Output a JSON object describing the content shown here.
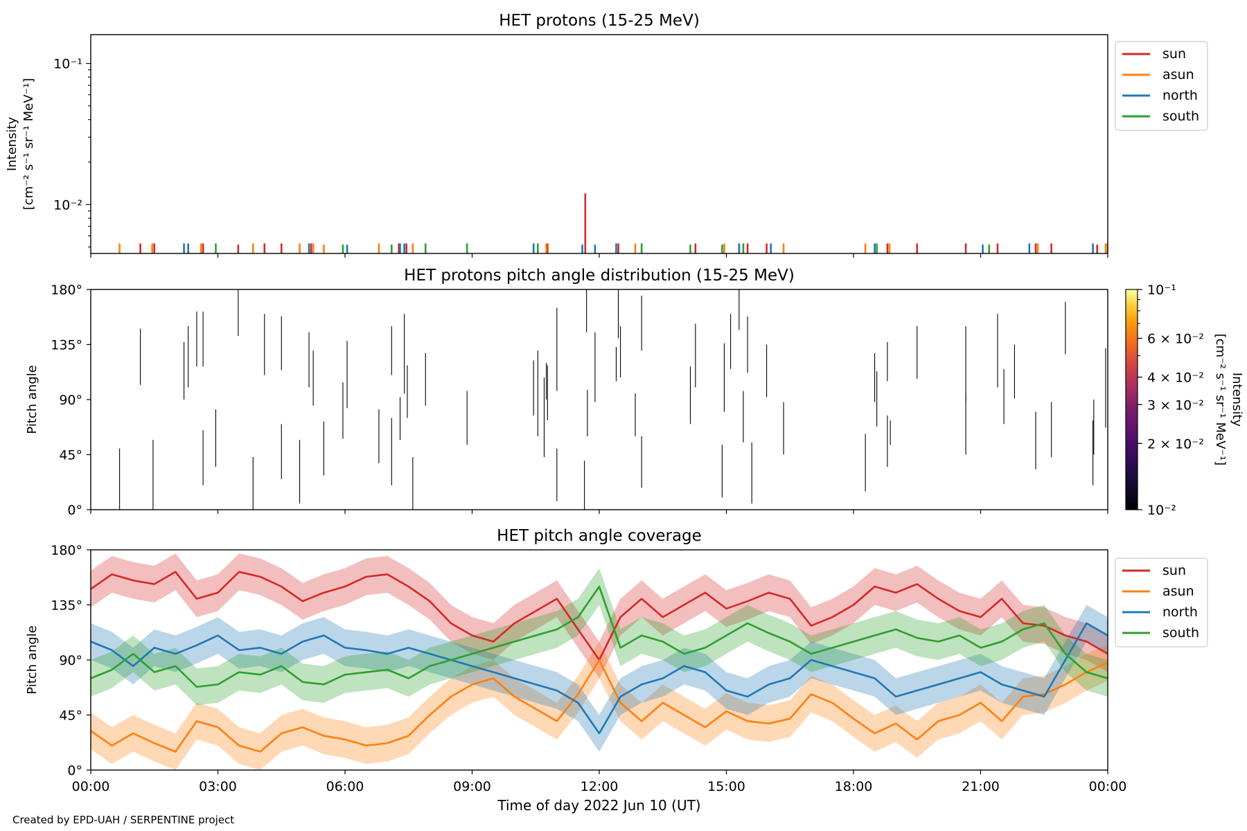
{
  "colors": {
    "sun": "#d62728",
    "asun": "#ff7f0e",
    "north": "#1f77b4",
    "south": "#2ca02c"
  },
  "footer": "Created by EPD-UAH / SERPENTINE project",
  "x_axis": {
    "label": "Time of day 2022 Jun 10 (UT)",
    "ticks": [
      0,
      3,
      6,
      9,
      12,
      15,
      18,
      21,
      24
    ],
    "tick_labels": [
      "00:00",
      "03:00",
      "06:00",
      "09:00",
      "12:00",
      "15:00",
      "18:00",
      "21:00",
      "00:00"
    ],
    "range_hours": [
      0,
      24
    ]
  },
  "chart_data": [
    {
      "type": "line",
      "title": "HET protons (15-25 MeV)",
      "ylabel": "Intensity [cm$^{-2}$ s$^{-1}$ sr$^{-1}$ MeV$^{-1}$]",
      "ylabel_line1": "Intensity",
      "ylabel_line2": "[cm⁻² s⁻¹ sr⁻¹ MeV⁻¹]",
      "yscale": "log",
      "ylim": [
        0.0045,
        0.16
      ],
      "ytick_values": [
        0.01,
        0.1
      ],
      "ytick_labels": [
        "10⁻²",
        "10⁻¹"
      ],
      "legend": {
        "placement": "outside-right-top",
        "entries": [
          "sun",
          "asun",
          "north",
          "south"
        ]
      },
      "series": [
        {
          "name": "sun",
          "spike_times_h": [
            1.17,
            1.5,
            2.65,
            3.48,
            4.1,
            4.5,
            5.2,
            7.27,
            7.45,
            10.78,
            11.67,
            12.45,
            14.27,
            15.3,
            15.5,
            15.95,
            18.8,
            19.5,
            20.65,
            21.4,
            22.3,
            22.67,
            23.75
          ],
          "spike_values": [
            0.0053,
            0.0053,
            0.0053,
            0.0052,
            0.0053,
            0.0053,
            0.0053,
            0.0053,
            0.0053,
            0.0053,
            0.012,
            0.0053,
            0.0053,
            0.0053,
            0.0053,
            0.0053,
            0.0053,
            0.0053,
            0.0053,
            0.0053,
            0.0053,
            0.0053,
            0.0052
          ]
        },
        {
          "name": "asun",
          "spike_times_h": [
            0.68,
            1.45,
            2.6,
            3.83,
            4.93,
            5.25,
            5.5,
            6.8,
            7.6,
            10.75,
            12.85,
            14.95,
            16.35,
            18.28,
            18.85,
            22.35,
            23.95
          ],
          "spike_values": [
            0.0053,
            0.0053,
            0.0053,
            0.0053,
            0.0053,
            0.0053,
            0.0052,
            0.0053,
            0.0053,
            0.0053,
            0.0053,
            0.0053,
            0.0053,
            0.0053,
            0.0053,
            0.0053,
            0.0053
          ]
        },
        {
          "name": "north",
          "spike_times_h": [
            2.2,
            2.3,
            5.15,
            6.05,
            7.3,
            7.4,
            10.45,
            11.6,
            11.9,
            12.4,
            15.3,
            16.05,
            18.5,
            21.05,
            22.15,
            23.65
          ],
          "spike_values": [
            0.0053,
            0.0053,
            0.0053,
            0.0052,
            0.0053,
            0.0053,
            0.0053,
            0.0052,
            0.0052,
            0.0053,
            0.0053,
            0.0053,
            0.0053,
            0.0052,
            0.0053,
            0.0053
          ]
        },
        {
          "name": "south",
          "spike_times_h": [
            2.95,
            5.95,
            7.1,
            7.9,
            8.88,
            10.55,
            13.0,
            14.15,
            14.9,
            15.4,
            18.55,
            21.2,
            24.0
          ],
          "spike_values": [
            0.0053,
            0.0052,
            0.0052,
            0.0053,
            0.0053,
            0.0053,
            0.0053,
            0.0052,
            0.0052,
            0.0053,
            0.0053,
            0.0052,
            0.0053
          ]
        }
      ]
    },
    {
      "type": "heatmap",
      "title": "HET protons pitch angle distribution (15-25 MeV)",
      "ylabel": "Pitch angle",
      "ylim": [
        0,
        180
      ],
      "ytick_values": [
        0,
        45,
        90,
        135,
        180
      ],
      "ytick_labels": [
        "0°",
        "45°",
        "90°",
        "135°",
        "180°"
      ],
      "colorbar": {
        "label": "Intensity [cm$^{-2}$ s$^{-1}$ sr$^{-1}$ MeV$^{-1}$]",
        "label_line1": "Intensity",
        "label_line2": "[cm⁻² s⁻¹ sr⁻¹ MeV⁻¹]",
        "scale": "log",
        "range": [
          0.01,
          0.1
        ],
        "colormap": "inferno",
        "tick_values": [
          0.01,
          0.02,
          0.03,
          0.04,
          0.06,
          0.1
        ],
        "tick_labels": [
          "10⁻²",
          "2 × 10⁻²",
          "3 × 10⁻²",
          "4 × 10⁻²",
          "6 × 10⁻²",
          "10⁻¹"
        ]
      },
      "segments": [
        [
          0.68,
          0,
          50
        ],
        [
          1.17,
          102,
          148
        ],
        [
          1.47,
          0,
          57
        ],
        [
          2.2,
          90,
          137
        ],
        [
          2.3,
          100,
          150
        ],
        [
          2.5,
          117,
          162
        ],
        [
          2.65,
          117,
          162
        ],
        [
          2.65,
          20,
          65
        ],
        [
          2.95,
          35,
          82
        ],
        [
          3.48,
          142,
          180
        ],
        [
          3.83,
          0,
          43
        ],
        [
          4.1,
          110,
          160
        ],
        [
          4.5,
          114,
          158
        ],
        [
          4.5,
          25,
          70
        ],
        [
          4.93,
          5,
          57
        ],
        [
          5.15,
          100,
          145
        ],
        [
          5.25,
          85,
          130
        ],
        [
          5.5,
          28,
          72
        ],
        [
          5.95,
          58,
          104
        ],
        [
          6.05,
          83,
          138
        ],
        [
          6.8,
          38,
          82
        ],
        [
          7.1,
          110,
          150
        ],
        [
          7.1,
          20,
          75
        ],
        [
          7.3,
          57,
          92
        ],
        [
          7.4,
          95,
          160
        ],
        [
          7.47,
          75,
          118
        ],
        [
          7.6,
          0,
          43
        ],
        [
          7.9,
          85,
          128
        ],
        [
          8.88,
          53,
          97
        ],
        [
          10.45,
          77,
          122
        ],
        [
          10.55,
          60,
          130
        ],
        [
          10.7,
          43,
          108
        ],
        [
          10.75,
          90,
          120
        ],
        [
          10.78,
          73,
          118
        ],
        [
          11.0,
          7,
          50
        ],
        [
          11.0,
          97,
          165
        ],
        [
          11.65,
          0,
          40
        ],
        [
          11.7,
          145,
          180
        ],
        [
          11.72,
          60,
          98
        ],
        [
          11.9,
          88,
          145
        ],
        [
          12.4,
          105,
          133
        ],
        [
          12.45,
          140,
          180
        ],
        [
          12.5,
          108,
          150
        ],
        [
          12.85,
          60,
          95
        ],
        [
          13.0,
          18,
          60
        ],
        [
          13.0,
          130,
          175
        ],
        [
          14.15,
          70,
          117
        ],
        [
          14.27,
          100,
          152
        ],
        [
          14.9,
          10,
          53
        ],
        [
          14.95,
          80,
          136
        ],
        [
          15.1,
          115,
          160
        ],
        [
          15.3,
          147,
          180
        ],
        [
          15.4,
          55,
          97
        ],
        [
          15.5,
          112,
          158
        ],
        [
          15.6,
          5,
          55
        ],
        [
          15.95,
          92,
          135
        ],
        [
          16.35,
          45,
          88
        ],
        [
          18.28,
          15,
          62
        ],
        [
          18.5,
          88,
          128
        ],
        [
          18.55,
          68,
          113
        ],
        [
          18.8,
          35,
          77
        ],
        [
          18.8,
          105,
          137
        ],
        [
          18.87,
          53,
          73
        ],
        [
          19.5,
          107,
          150
        ],
        [
          20.65,
          88,
          150
        ],
        [
          20.65,
          45,
          95
        ],
        [
          21.4,
          100,
          160
        ],
        [
          21.55,
          70,
          115
        ],
        [
          21.8,
          91,
          135
        ],
        [
          22.3,
          33,
          80
        ],
        [
          22.67,
          43,
          88
        ],
        [
          23.0,
          127,
          170
        ],
        [
          23.65,
          20,
          73
        ],
        [
          23.67,
          45,
          90
        ],
        [
          23.95,
          67,
          132
        ]
      ]
    },
    {
      "type": "line",
      "title": "HET pitch angle coverage",
      "ylabel": "Pitch angle",
      "xlabel": "Time of day 2022 Jun 10 (UT)",
      "ylim": [
        0,
        180
      ],
      "ytick_values": [
        0,
        45,
        90,
        135,
        180
      ],
      "ytick_labels": [
        "0°",
        "45°",
        "90°",
        "135°",
        "180°"
      ],
      "legend": {
        "placement": "outside-right-top",
        "entries": [
          "sun",
          "asun",
          "north",
          "south"
        ]
      },
      "band_halfwidth_deg": 15,
      "x": [
        0,
        0.5,
        1,
        1.5,
        2,
        2.5,
        3,
        3.5,
        4,
        4.5,
        5,
        5.5,
        6,
        6.5,
        7,
        7.5,
        8,
        8.5,
        9,
        9.5,
        10,
        10.5,
        11,
        11.5,
        12,
        12.5,
        13,
        13.5,
        14,
        14.5,
        15,
        15.5,
        16,
        16.5,
        17,
        17.5,
        18,
        18.5,
        19,
        19.5,
        20,
        20.5,
        21,
        21.5,
        22,
        22.5,
        23,
        23.5,
        24
      ],
      "series": [
        {
          "name": "sun",
          "values": [
            148,
            160,
            155,
            152,
            162,
            140,
            145,
            162,
            158,
            150,
            138,
            145,
            150,
            158,
            160,
            150,
            138,
            120,
            110,
            105,
            120,
            130,
            140,
            115,
            90,
            125,
            140,
            125,
            135,
            145,
            132,
            138,
            145,
            140,
            118,
            125,
            135,
            150,
            145,
            152,
            140,
            130,
            125,
            140,
            120,
            118,
            110,
            105,
            95
          ]
        },
        {
          "name": "asun",
          "values": [
            32,
            20,
            30,
            22,
            15,
            40,
            35,
            20,
            15,
            30,
            35,
            28,
            25,
            20,
            22,
            28,
            45,
            60,
            70,
            75,
            60,
            50,
            40,
            62,
            90,
            55,
            40,
            55,
            45,
            35,
            48,
            40,
            38,
            42,
            62,
            55,
            42,
            30,
            38,
            25,
            40,
            45,
            55,
            40,
            60,
            62,
            70,
            80,
            88
          ]
        },
        {
          "name": "north",
          "values": [
            105,
            98,
            85,
            100,
            95,
            102,
            110,
            98,
            100,
            95,
            105,
            110,
            100,
            98,
            95,
            100,
            95,
            90,
            85,
            80,
            75,
            70,
            65,
            55,
            30,
            60,
            70,
            75,
            85,
            80,
            65,
            60,
            70,
            75,
            90,
            85,
            80,
            75,
            60,
            65,
            70,
            75,
            80,
            70,
            65,
            60,
            90,
            120,
            110
          ]
        },
        {
          "name": "south",
          "values": [
            75,
            82,
            95,
            80,
            85,
            68,
            70,
            80,
            78,
            85,
            72,
            70,
            78,
            80,
            82,
            75,
            85,
            90,
            95,
            100,
            105,
            110,
            115,
            125,
            150,
            100,
            110,
            105,
            95,
            100,
            110,
            120,
            112,
            105,
            95,
            100,
            105,
            110,
            115,
            108,
            105,
            110,
            100,
            105,
            115,
            120,
            95,
            80,
            75
          ]
        }
      ]
    }
  ]
}
